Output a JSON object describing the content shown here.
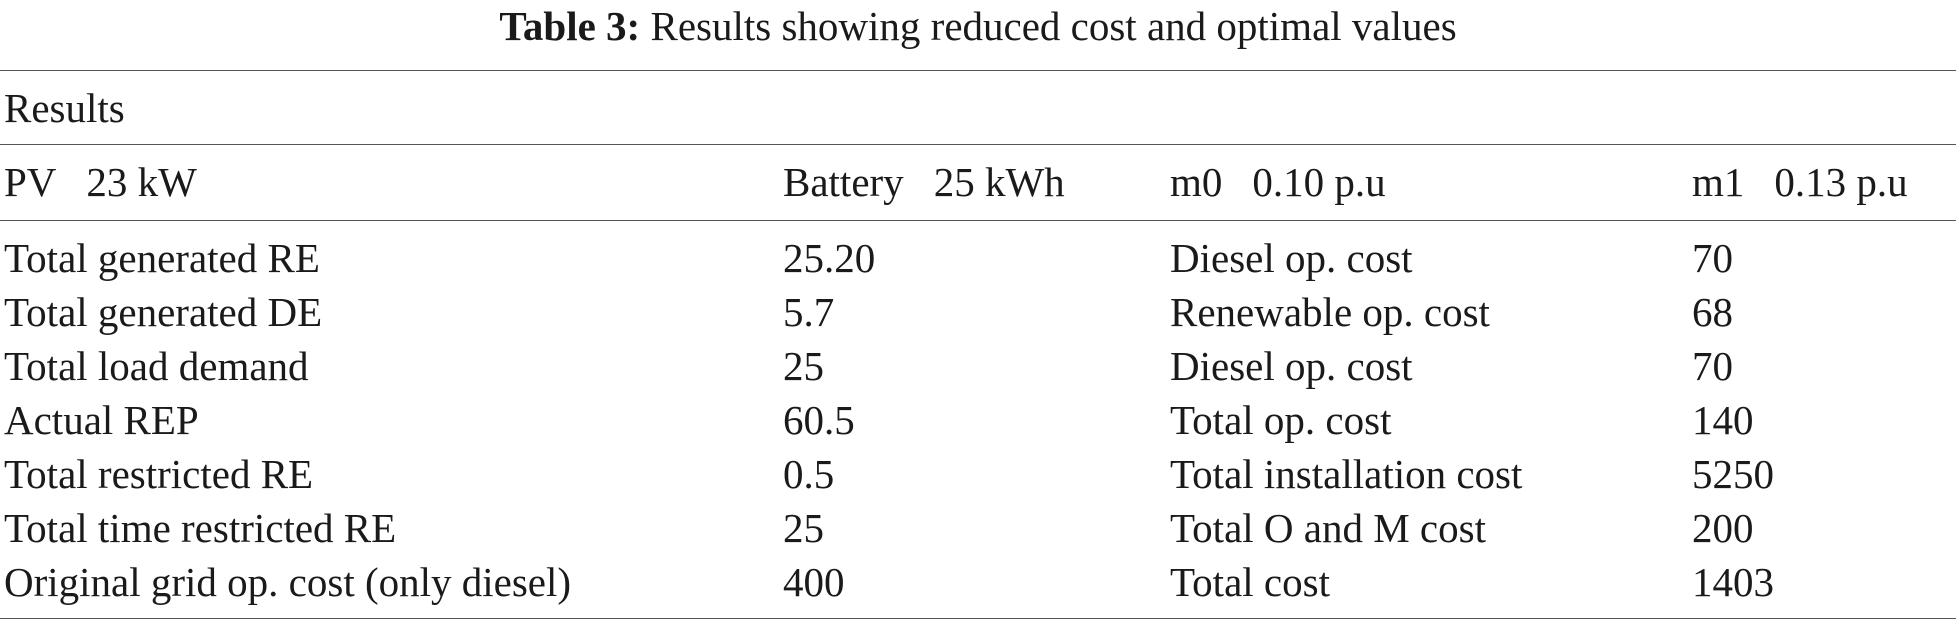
{
  "caption": {
    "label": "Table 3:",
    "text": "Results showing reduced cost and optimal values"
  },
  "section_label": "Results",
  "params": [
    {
      "name": "PV",
      "value": "23 kW"
    },
    {
      "name": "Battery",
      "value": "25 kWh"
    },
    {
      "name": "m0",
      "value": "0.10 p.u"
    },
    {
      "name": "m1",
      "value": "0.13 p.u"
    }
  ],
  "rows": [
    {
      "label1": "Total generated RE",
      "value1": "25.20",
      "label2": "Diesel op. cost",
      "value2": "70"
    },
    {
      "label1": "Total generated DE",
      "value1": "5.7",
      "label2": "Renewable op. cost",
      "value2": "68"
    },
    {
      "label1": "Total load demand",
      "value1": "25",
      "label2": "Diesel op. cost",
      "value2": "70"
    },
    {
      "label1": "Actual REP",
      "value1": "60.5",
      "label2": "Total op. cost",
      "value2": "140"
    },
    {
      "label1": "Total restricted RE",
      "value1": "0.5",
      "label2": "Total installation cost",
      "value2": "5250"
    },
    {
      "label1": "Total time restricted RE",
      "value1": "25",
      "label2": "Total O and M cost",
      "value2": "200"
    },
    {
      "label1": "Original grid op. cost (only diesel)",
      "value1": "400",
      "label2": "Total cost",
      "value2": "1403"
    }
  ]
}
